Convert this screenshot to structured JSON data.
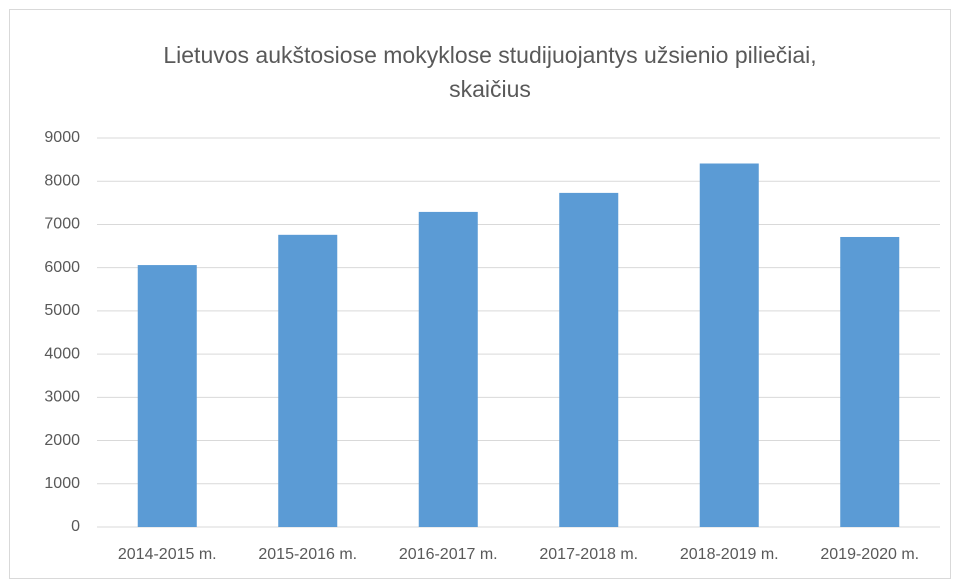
{
  "chart_data": {
    "type": "bar",
    "title": "Lietuvos aukštosiose mokyklose studijuojantys užsienio piliečiai, skaičius",
    "categories": [
      "2014-2015 m.",
      "2015-2016 m.",
      "2016-2017 m.",
      "2017-2018 m.",
      "2018-2019 m.",
      "2019-2020 m."
    ],
    "values": [
      6060,
      6760,
      7290,
      7730,
      8410,
      6710
    ],
    "color": "#5b9bd5",
    "ylim": [
      0,
      9000
    ],
    "yticks": [
      0,
      1000,
      2000,
      3000,
      4000,
      5000,
      6000,
      7000,
      8000,
      9000
    ],
    "grid": true
  }
}
